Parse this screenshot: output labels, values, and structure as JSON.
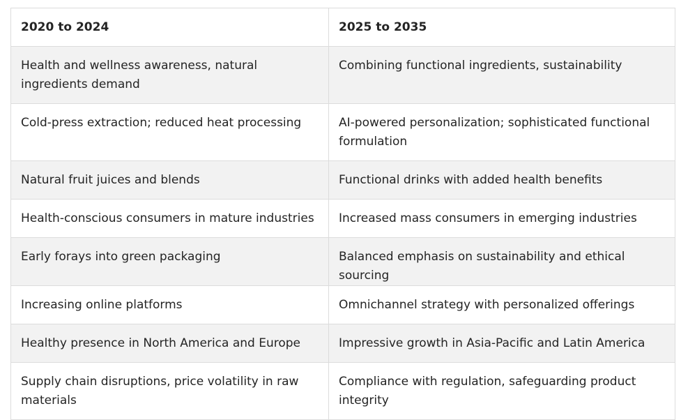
{
  "table": {
    "headers": [
      "2020 to 2024",
      "2025 to 2035"
    ],
    "rows": [
      [
        "Health and wellness awareness, natural ingredients demand",
        "Combining functional ingredients, sustainability"
      ],
      [
        "Cold-press extraction; reduced heat processing",
        "AI-powered personalization; sophisticated functional formulation"
      ],
      [
        "Natural fruit juices and blends",
        "Functional drinks with added health benefits"
      ],
      [
        "Health-conscious consumers in mature industries",
        "Increased mass consumers in emerging industries"
      ],
      [
        "Early forays into green packaging",
        "Balanced emphasis on sustainability and ethical sourcing"
      ],
      [
        "Increasing online platforms",
        "Omnichannel strategy with personalized offerings"
      ],
      [
        "Healthy presence in North America and Europe",
        "Impressive growth in Asia-Pacific and Latin America"
      ],
      [
        "Supply chain disruptions, price volatility in raw materials",
        "Compliance with regulation, safeguarding product integrity"
      ]
    ]
  }
}
